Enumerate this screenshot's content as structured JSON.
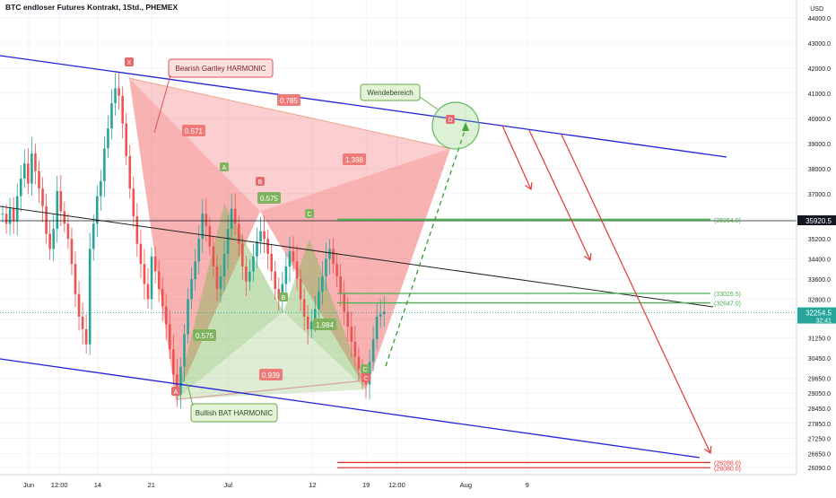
{
  "header": {
    "title": "BTC endloser Futures Kontrakt, 1Std., PHEMEX"
  },
  "chart_data": {
    "type": "candlestick",
    "currency_label": "USD",
    "y_ticks": [
      26090,
      26650,
      27250,
      27850,
      28450,
      29050,
      29650,
      30450,
      31250,
      32000,
      32800,
      33600,
      34400,
      35200,
      36000,
      37000,
      38000,
      39000,
      40000,
      41000,
      42000,
      43000,
      44000
    ],
    "y_tick_labels": [
      "26090.0",
      "26650.0",
      "27250.0",
      "27850.0",
      "28450.0",
      "29050.0",
      "29650.0",
      "30450.0",
      "31250.0",
      "32000.0",
      "32800.0",
      "33600.0",
      "34400.0",
      "35200.0",
      "36000.0",
      "37000.0",
      "38000.0",
      "39000.0",
      "40000.0",
      "41000.0",
      "42000.0",
      "43000.0",
      "44000.0"
    ],
    "x_ticks": [
      {
        "label": "Jun",
        "x": 0
      },
      {
        "label": "12:00",
        "x": 4
      },
      {
        "label": "14",
        "x": 9
      },
      {
        "label": "21",
        "x": 16
      },
      {
        "label": "Jul",
        "x": 26
      },
      {
        "label": "12",
        "x": 37
      },
      {
        "label": "19",
        "x": 44
      },
      {
        "label": "12:00",
        "x": 48
      },
      {
        "label": "Aug",
        "x": 57
      },
      {
        "label": "9",
        "x": 65
      }
    ],
    "price_badges": [
      {
        "value": "35920.5",
        "price": 35920.5,
        "style": "dark"
      },
      {
        "value": "32254.5",
        "countdown": "32:41",
        "price": 32254.5,
        "style": "green"
      }
    ],
    "level_lines": [
      {
        "label": "(35964.0)",
        "price": 35964,
        "color": "#4caf50"
      },
      {
        "label": "(33026.5)",
        "price": 33026.5,
        "color": "#4caf50"
      },
      {
        "label": "(32647.0)",
        "price": 32647,
        "color": "#4caf50"
      },
      {
        "label": "(26288.0)",
        "price": 26288,
        "color": "#e53935"
      },
      {
        "label": "(26080.0)",
        "price": 26080,
        "color": "#e53935"
      }
    ],
    "pattern_labels": {
      "gartley_name": "Bearish Gartley HARMONIC",
      "bat_name": "Bullish BAT HARMONIC",
      "reversal_zone": "Wendebereich",
      "gartley_points": [
        "X",
        "A",
        "B",
        "C",
        "D"
      ],
      "bat_points": [
        "A",
        "A",
        "B",
        "C",
        "C"
      ],
      "gartley_ratios": [
        "0.571",
        "0.785",
        "1.398",
        "0.939"
      ],
      "bat_ratios": [
        "0.575",
        "0.575",
        "1.984"
      ]
    },
    "series": [
      {
        "name": "",
        "candles_close": [
          36200,
          35800,
          36400,
          35900,
          36900,
          37600,
          38200,
          37400,
          38600,
          37900,
          37200,
          36500,
          35400,
          34800,
          35600,
          37100,
          36300,
          35800,
          35200,
          34200,
          33000,
          32100,
          31600,
          31000,
          34800,
          35800,
          36900,
          37500,
          38800,
          39600,
          40600,
          41200,
          40900,
          39800,
          38500,
          37200,
          36100,
          35000,
          34200,
          33400,
          32800,
          34500,
          33900,
          33200,
          32500,
          31800,
          30800,
          29800,
          29000,
          30100,
          31400,
          32800,
          33600,
          34300,
          35200,
          36200,
          35700,
          34900,
          34100,
          33200,
          33700,
          34600,
          35600,
          36400,
          35800,
          35000,
          34100,
          33500,
          33900,
          34500,
          35100,
          35500,
          35200,
          34600,
          33900,
          33200,
          32800,
          33400,
          34100,
          34700,
          34300,
          33600,
          32800,
          32100,
          31600,
          31900,
          32400,
          33100,
          33700,
          34400,
          34800,
          34200,
          33700,
          33000,
          32300,
          31700,
          31100,
          30500,
          30000,
          29700,
          29400,
          30300,
          31200,
          32100,
          32200,
          32300
        ]
      }
    ]
  }
}
